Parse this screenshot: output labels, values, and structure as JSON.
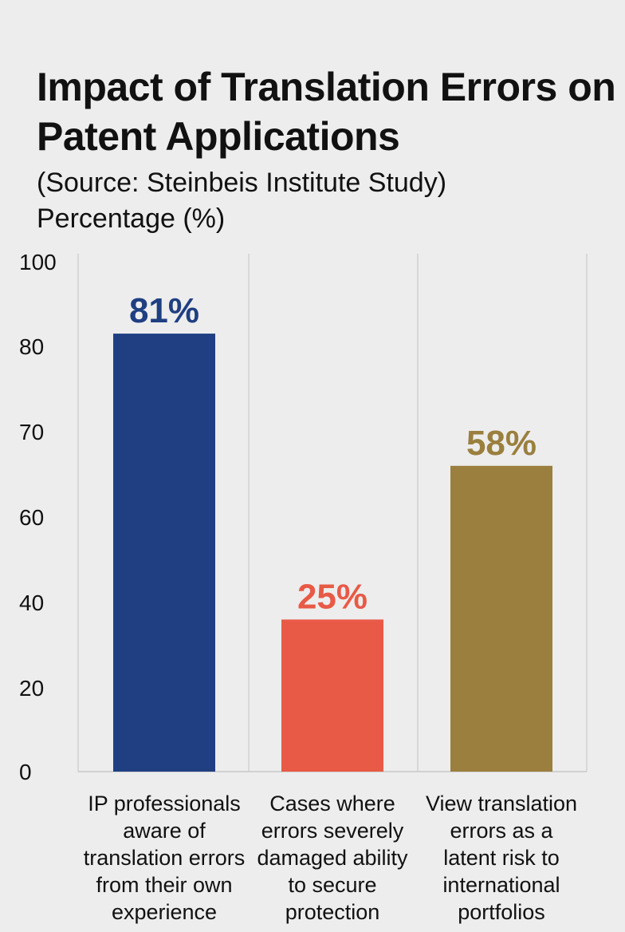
{
  "chart_data": {
    "type": "bar",
    "title": "Impact of Translation Errors on Patent Applications",
    "subtitle": "(Source: Steinbeis Institute Study)",
    "ylabel": "Percentage (%)",
    "xlabel": "",
    "yticks": [
      0,
      20,
      40,
      60,
      70,
      80,
      100
    ],
    "categories": [
      "IP professionals\naware of\ntranslation errors\nfrom their own\nexperience",
      "Cases where\nerrors severely\ndamaged ability\nto secure\nprotection",
      "View translation\nerrors as a\nlatent risk to\ninternational\nportfolios"
    ],
    "values": [
      81,
      25,
      58
    ],
    "data_labels": [
      "81%",
      "25%",
      "58%"
    ],
    "colors": [
      "#1f3f82",
      "#e85a46",
      "#9a7f3e"
    ],
    "grid": "vertical"
  }
}
